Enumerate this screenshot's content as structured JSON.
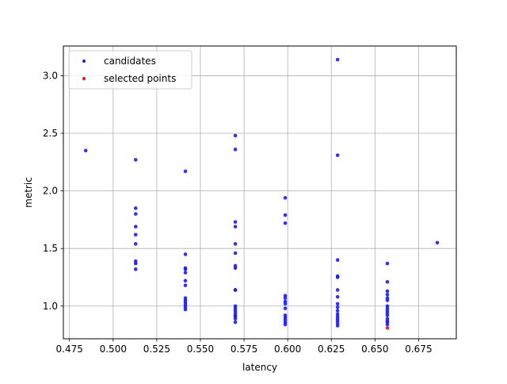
{
  "chart_data": {
    "type": "scatter",
    "title": "",
    "xlabel": "latency",
    "ylabel": "metric",
    "xlim": [
      0.4715,
      0.6966
    ],
    "ylim": [
      0.716,
      3.258
    ],
    "x_ticks": [
      "0.475",
      "0.500",
      "0.525",
      "0.550",
      "0.575",
      "0.600",
      "0.625",
      "0.650",
      "0.675"
    ],
    "x_tick_values": [
      0.475,
      0.5,
      0.525,
      0.55,
      0.575,
      0.6,
      0.625,
      0.65,
      0.675
    ],
    "y_ticks": [
      "1.0",
      "1.5",
      "2.0",
      "2.5",
      "3.0"
    ],
    "y_tick_values": [
      1.0,
      1.5,
      2.0,
      2.5,
      3.0
    ],
    "grid": true,
    "legend_position": "top-left",
    "colors": {
      "candidates": "#1a1aff",
      "selected": "#e8120c",
      "grid": "#b0b0b0"
    },
    "series": [
      {
        "name": "candidates",
        "points": [
          [
            0.4843,
            2.35
          ],
          [
            0.5129,
            2.27
          ],
          [
            0.5129,
            1.85
          ],
          [
            0.5129,
            1.8
          ],
          [
            0.5129,
            1.69
          ],
          [
            0.5129,
            1.62
          ],
          [
            0.5129,
            1.54
          ],
          [
            0.5129,
            1.39
          ],
          [
            0.5129,
            1.37
          ],
          [
            0.5129,
            1.32
          ],
          [
            0.5414,
            2.17
          ],
          [
            0.5414,
            1.45
          ],
          [
            0.5414,
            1.33
          ],
          [
            0.5414,
            1.32
          ],
          [
            0.5414,
            1.29
          ],
          [
            0.5414,
            1.22
          ],
          [
            0.5414,
            1.18
          ],
          [
            0.5414,
            1.07
          ],
          [
            0.5414,
            1.05
          ],
          [
            0.5414,
            1.03
          ],
          [
            0.5414,
            1.01
          ],
          [
            0.5414,
            0.99
          ],
          [
            0.5414,
            0.97
          ],
          [
            0.57,
            2.48
          ],
          [
            0.57,
            2.36
          ],
          [
            0.57,
            1.73
          ],
          [
            0.57,
            1.69
          ],
          [
            0.57,
            1.54
          ],
          [
            0.57,
            1.46
          ],
          [
            0.57,
            1.35
          ],
          [
            0.57,
            1.33
          ],
          [
            0.57,
            1.14
          ],
          [
            0.57,
            1.14
          ],
          [
            0.57,
            1.0
          ],
          [
            0.57,
            0.98
          ],
          [
            0.57,
            0.96
          ],
          [
            0.57,
            0.94
          ],
          [
            0.57,
            0.92
          ],
          [
            0.57,
            0.91
          ],
          [
            0.57,
            0.89
          ],
          [
            0.57,
            0.86
          ],
          [
            0.5986,
            1.94
          ],
          [
            0.5986,
            1.79
          ],
          [
            0.5986,
            1.72
          ],
          [
            0.5986,
            1.09
          ],
          [
            0.5986,
            1.07
          ],
          [
            0.5986,
            1.04
          ],
          [
            0.5986,
            1.02
          ],
          [
            0.5986,
            0.98
          ],
          [
            0.5986,
            0.92
          ],
          [
            0.5986,
            0.9
          ],
          [
            0.5986,
            0.88
          ],
          [
            0.5986,
            0.86
          ],
          [
            0.5986,
            0.84
          ],
          [
            0.6286,
            3.14
          ],
          [
            0.6286,
            2.31
          ],
          [
            0.6286,
            1.4
          ],
          [
            0.6286,
            1.26
          ],
          [
            0.6286,
            1.25
          ],
          [
            0.6286,
            1.14
          ],
          [
            0.6286,
            1.08
          ],
          [
            0.6286,
            1.02
          ],
          [
            0.6286,
            0.99
          ],
          [
            0.6286,
            0.96
          ],
          [
            0.6286,
            0.93
          ],
          [
            0.6286,
            0.91
          ],
          [
            0.6286,
            0.89
          ],
          [
            0.6286,
            0.87
          ],
          [
            0.6286,
            0.85
          ],
          [
            0.6286,
            0.83
          ],
          [
            0.6571,
            1.37
          ],
          [
            0.6571,
            1.21
          ],
          [
            0.6571,
            1.13
          ],
          [
            0.6571,
            1.1
          ],
          [
            0.6571,
            1.07
          ],
          [
            0.6571,
            1.05
          ],
          [
            0.6571,
            1.0
          ],
          [
            0.6571,
            0.98
          ],
          [
            0.6571,
            0.96
          ],
          [
            0.6571,
            0.94
          ],
          [
            0.6571,
            0.92
          ],
          [
            0.6571,
            0.89
          ],
          [
            0.6571,
            0.87
          ],
          [
            0.6571,
            0.86
          ],
          [
            0.6571,
            0.84
          ],
          [
            0.6857,
            1.55
          ]
        ]
      },
      {
        "name": "selected points",
        "points": [
          [
            0.6571,
            0.81
          ]
        ]
      }
    ]
  }
}
